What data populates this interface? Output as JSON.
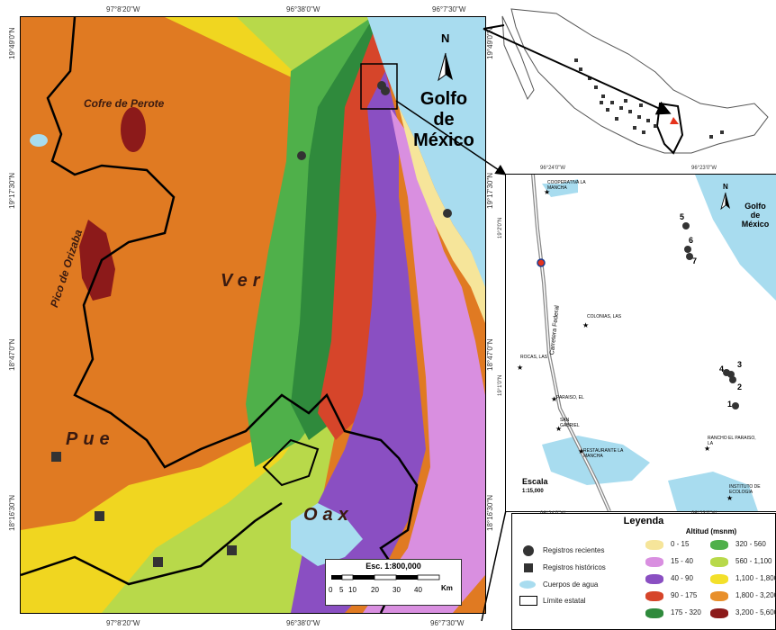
{
  "main_map": {
    "coords_top": [
      "97°8'20\"W",
      "96°38'0\"W",
      "96°7'30\"W"
    ],
    "coords_bottom": [
      "97°8'20\"W",
      "96°38'0\"W",
      "96°7'30\"W"
    ],
    "coords_left": [
      "19°49'0\"N",
      "19°17'30\"N",
      "18°47'0\"N",
      "18°16'30\"N"
    ],
    "coords_right": [
      "19°49'0\"N",
      "19°17'30\"N",
      "18°47'0\"N",
      "18°16'30\"N"
    ],
    "labels": {
      "cofre": "Cofre de Perote",
      "pico": "Pico de Orizaba",
      "ver": "Ver",
      "pue": "Pue",
      "oax": "Oax",
      "golfo1": "Golfo",
      "golfo2": "de",
      "golfo3": "México",
      "north": "N"
    },
    "scale": {
      "title": "Esc. 1:800,000",
      "ticks": [
        "0",
        "5",
        "10",
        "20",
        "30",
        "40"
      ],
      "unit": "Km"
    }
  },
  "inset": {
    "coords_top": [
      "96°24'0\"W",
      "96°23'0\"W"
    ],
    "coords_bottom": [
      "96°24'0\"W",
      "96°23'0\"W"
    ],
    "coords_left": [
      "19°2'0\"N",
      "19°1'0\"N"
    ],
    "coords_right": [
      "19°2'0\"N",
      "19°1'0\"N"
    ],
    "north": "N",
    "golfo1": "Golfo",
    "golfo2": "de",
    "golfo3": "México",
    "road": "Carretera Federal",
    "places": [
      "COOPERATIVA LA MANCHA",
      "COLONIAS, LAS",
      "ROCAS, LAS",
      "PARAISO, EL",
      "SAN GABRIEL",
      "RESTAURANTE LA MANCHA",
      "RANCHO EL PARAISO, LA",
      "INSTITUTO DE ECOLOGIA"
    ],
    "points": [
      "1",
      "2",
      "3",
      "4",
      "5",
      "6",
      "7"
    ],
    "scale_title": "Escala",
    "scale_value": "1:15,000"
  },
  "legend": {
    "title": "Leyenda",
    "subtitle": "Altitud (msnm)",
    "symbols": [
      "Registros recientes",
      "Registros históricos",
      "Cuerpos de agua",
      "Límite estatal"
    ],
    "col1": [
      {
        "label": "0 - 15",
        "color": "#f6e59a"
      },
      {
        "label": "15 - 40",
        "color": "#d98fe0"
      },
      {
        "label": "40 - 90",
        "color": "#8a4fc2"
      },
      {
        "label": "90 - 175",
        "color": "#d6452a"
      },
      {
        "label": "175 - 320",
        "color": "#2f8a3c"
      }
    ],
    "col2": [
      {
        "label": "320 - 560",
        "color": "#4fb04a"
      },
      {
        "label": "560 - 1,100",
        "color": "#b8d94a"
      },
      {
        "label": "1,100 - 1,800",
        "color": "#f3e02a"
      },
      {
        "label": "1,800 - 3,200",
        "color": "#e88f2a"
      },
      {
        "label": "3,200 - 5,600",
        "color": "#8c1a1a"
      }
    ]
  },
  "colors": {
    "water": "#a8dcef",
    "sea": "#a8dcef",
    "orange": "#e07a22",
    "yellow": "#f0d620",
    "lime": "#b8d94a",
    "green": "#4fb04a",
    "darkgreen": "#2f8a3c",
    "red": "#d6452a",
    "purple": "#8a4fc2",
    "pink": "#d98fe0",
    "sand": "#f6e59a",
    "maroon": "#8c1a1a"
  }
}
